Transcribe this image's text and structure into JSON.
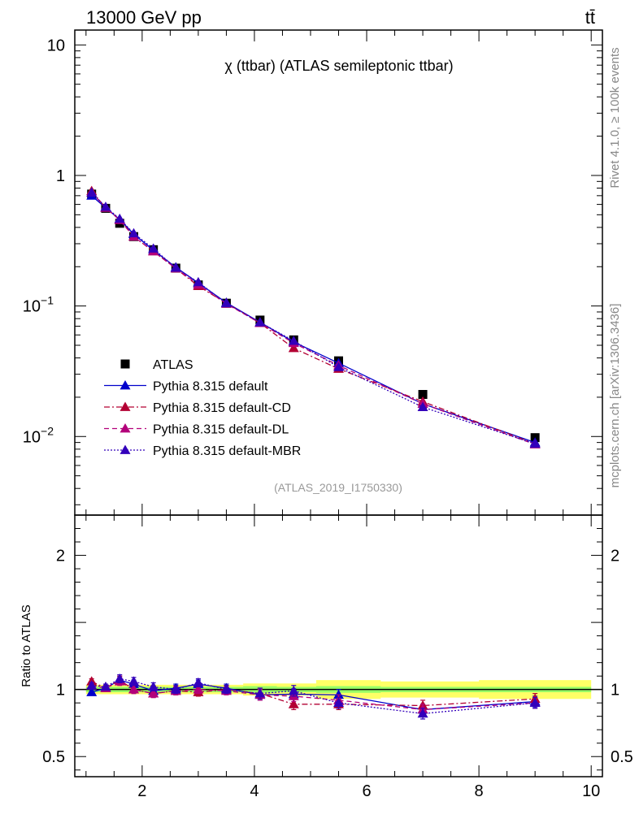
{
  "header": {
    "left_label": "13000 GeV pp",
    "right_label": "tt̄"
  },
  "side_labels": {
    "rivet": "Rivet 4.1.0, ≥ 100k events",
    "mcplots": "mcplots.cern.ch [arXiv:1306.3436]"
  },
  "colors": {
    "data": "#000000",
    "default": "#0000cc",
    "default_cd": "#b30033",
    "default_dl": "#b3007a",
    "default_mbr": "#3300bb",
    "band_inner": "#99ff66",
    "band_outer": "#ffff66"
  },
  "chart_data": [
    {
      "type": "line",
      "title": "χ (ttbar) (ATLAS semileptonic ttbar)",
      "analysis_id": "(ATLAS_2019_I1750330)",
      "xlabel": "",
      "ylabel": "",
      "yscale": "log",
      "xlim": [
        0.8,
        10.2
      ],
      "ylim": [
        0.0025,
        13
      ],
      "y_ticks": [
        {
          "value": 10,
          "label": "10"
        },
        {
          "value": 1,
          "label": "1"
        },
        {
          "value": 0.1,
          "label": "10",
          "sup": "−1"
        },
        {
          "value": 0.01,
          "label": "10",
          "sup": "−2"
        }
      ],
      "x": [
        1.1,
        1.35,
        1.6,
        1.85,
        2.2,
        2.6,
        3.0,
        3.5,
        4.1,
        4.7,
        5.5,
        7.0,
        9.0
      ],
      "series": [
        {
          "name": "ATLAS",
          "key": "data",
          "marker": "square",
          "style": "none",
          "values": [
            0.72,
            0.56,
            0.43,
            0.34,
            0.27,
            0.195,
            0.145,
            0.105,
            0.078,
            0.055,
            0.038,
            0.021,
            0.0098
          ]
        },
        {
          "name": "Pythia 8.315 default",
          "key": "default",
          "marker": "triangle",
          "style": "solid",
          "values": [
            0.7,
            0.565,
            0.46,
            0.355,
            0.268,
            0.198,
            0.15,
            0.106,
            0.075,
            0.053,
            0.0365,
            0.0178,
            0.009
          ]
        },
        {
          "name": "Pythia 8.315 default-CD",
          "key": "default_cd",
          "marker": "triangle",
          "style": "dashdot",
          "values": [
            0.76,
            0.565,
            0.46,
            0.34,
            0.262,
            0.194,
            0.142,
            0.105,
            0.074,
            0.0475,
            0.033,
            0.0185,
            0.0088
          ]
        },
        {
          "name": "Pythia 8.315 default-DL",
          "key": "default_dl",
          "marker": "triangle",
          "style": "dashed",
          "values": [
            0.74,
            0.565,
            0.455,
            0.34,
            0.262,
            0.194,
            0.146,
            0.104,
            0.074,
            0.052,
            0.035,
            0.0178,
            0.0087
          ]
        },
        {
          "name": "Pythia 8.315 default-MBR",
          "key": "default_mbr",
          "marker": "triangle",
          "style": "dotted",
          "values": [
            0.74,
            0.575,
            0.465,
            0.36,
            0.275,
            0.196,
            0.152,
            0.105,
            0.075,
            0.054,
            0.034,
            0.0168,
            0.0088
          ]
        }
      ],
      "legend": [
        "ATLAS",
        "Pythia 8.315 default",
        "Pythia 8.315 default-CD",
        "Pythia 8.315 default-DL",
        "Pythia 8.315 default-MBR"
      ],
      "legend_position": "bottom-left"
    },
    {
      "type": "line",
      "title": "",
      "xlabel": "",
      "ylabel": "Ratio to ATLAS",
      "xlim": [
        0.8,
        10.2
      ],
      "ylim": [
        0.35,
        2.3
      ],
      "x_ticks": [
        2,
        4,
        6,
        8,
        10
      ],
      "y_ticks": [
        0.5,
        1,
        2
      ],
      "x": [
        1.1,
        1.35,
        1.6,
        1.85,
        2.2,
        2.6,
        3.0,
        3.5,
        4.1,
        4.7,
        5.5,
        7.0,
        9.0
      ],
      "band_inner": [
        0.02,
        0.02,
        0.02,
        0.02,
        0.02,
        0.02,
        0.02,
        0.02,
        0.025,
        0.02,
        0.025,
        0.02,
        0.02
      ],
      "band_outer": [
        0.035,
        0.035,
        0.035,
        0.035,
        0.035,
        0.035,
        0.035,
        0.035,
        0.045,
        0.045,
        0.07,
        0.06,
        0.07
      ],
      "series": [
        {
          "name": "Pythia 8.315 default",
          "key": "default",
          "style": "solid",
          "values": [
            0.98,
            1.01,
            1.07,
            1.04,
            0.99,
            1.01,
            1.04,
            1.01,
            0.96,
            0.965,
            0.96,
            0.85,
            0.91
          ],
          "errors": [
            0.02,
            0.02,
            0.03,
            0.03,
            0.03,
            0.03,
            0.03,
            0.03,
            0.04,
            0.04,
            0.04,
            0.04,
            0.04
          ]
        },
        {
          "name": "Pythia 8.315 default-CD",
          "key": "default_cd",
          "style": "dashdot",
          "values": [
            1.06,
            1.01,
            1.07,
            1.0,
            0.97,
            0.99,
            0.98,
            1.0,
            0.97,
            0.89,
            0.89,
            0.88,
            0.93
          ],
          "errors": [
            0.02,
            0.02,
            0.03,
            0.03,
            0.03,
            0.03,
            0.03,
            0.03,
            0.04,
            0.04,
            0.04,
            0.04,
            0.04
          ]
        },
        {
          "name": "Pythia 8.315 default-DL",
          "key": "default_dl",
          "style": "dashed",
          "values": [
            1.03,
            1.01,
            1.06,
            1.0,
            0.97,
            0.99,
            1.0,
            0.99,
            0.96,
            0.95,
            0.92,
            0.85,
            0.9
          ],
          "errors": [
            0.02,
            0.02,
            0.03,
            0.03,
            0.03,
            0.03,
            0.03,
            0.03,
            0.04,
            0.04,
            0.04,
            0.04,
            0.04
          ]
        },
        {
          "name": "Pythia 8.315 default-MBR",
          "key": "default_mbr",
          "style": "dotted",
          "values": [
            1.03,
            1.02,
            1.08,
            1.06,
            1.02,
            1.0,
            1.05,
            1.0,
            0.97,
            0.99,
            0.9,
            0.82,
            0.9
          ],
          "errors": [
            0.02,
            0.02,
            0.03,
            0.03,
            0.03,
            0.03,
            0.03,
            0.03,
            0.04,
            0.04,
            0.04,
            0.04,
            0.04
          ]
        }
      ]
    }
  ]
}
